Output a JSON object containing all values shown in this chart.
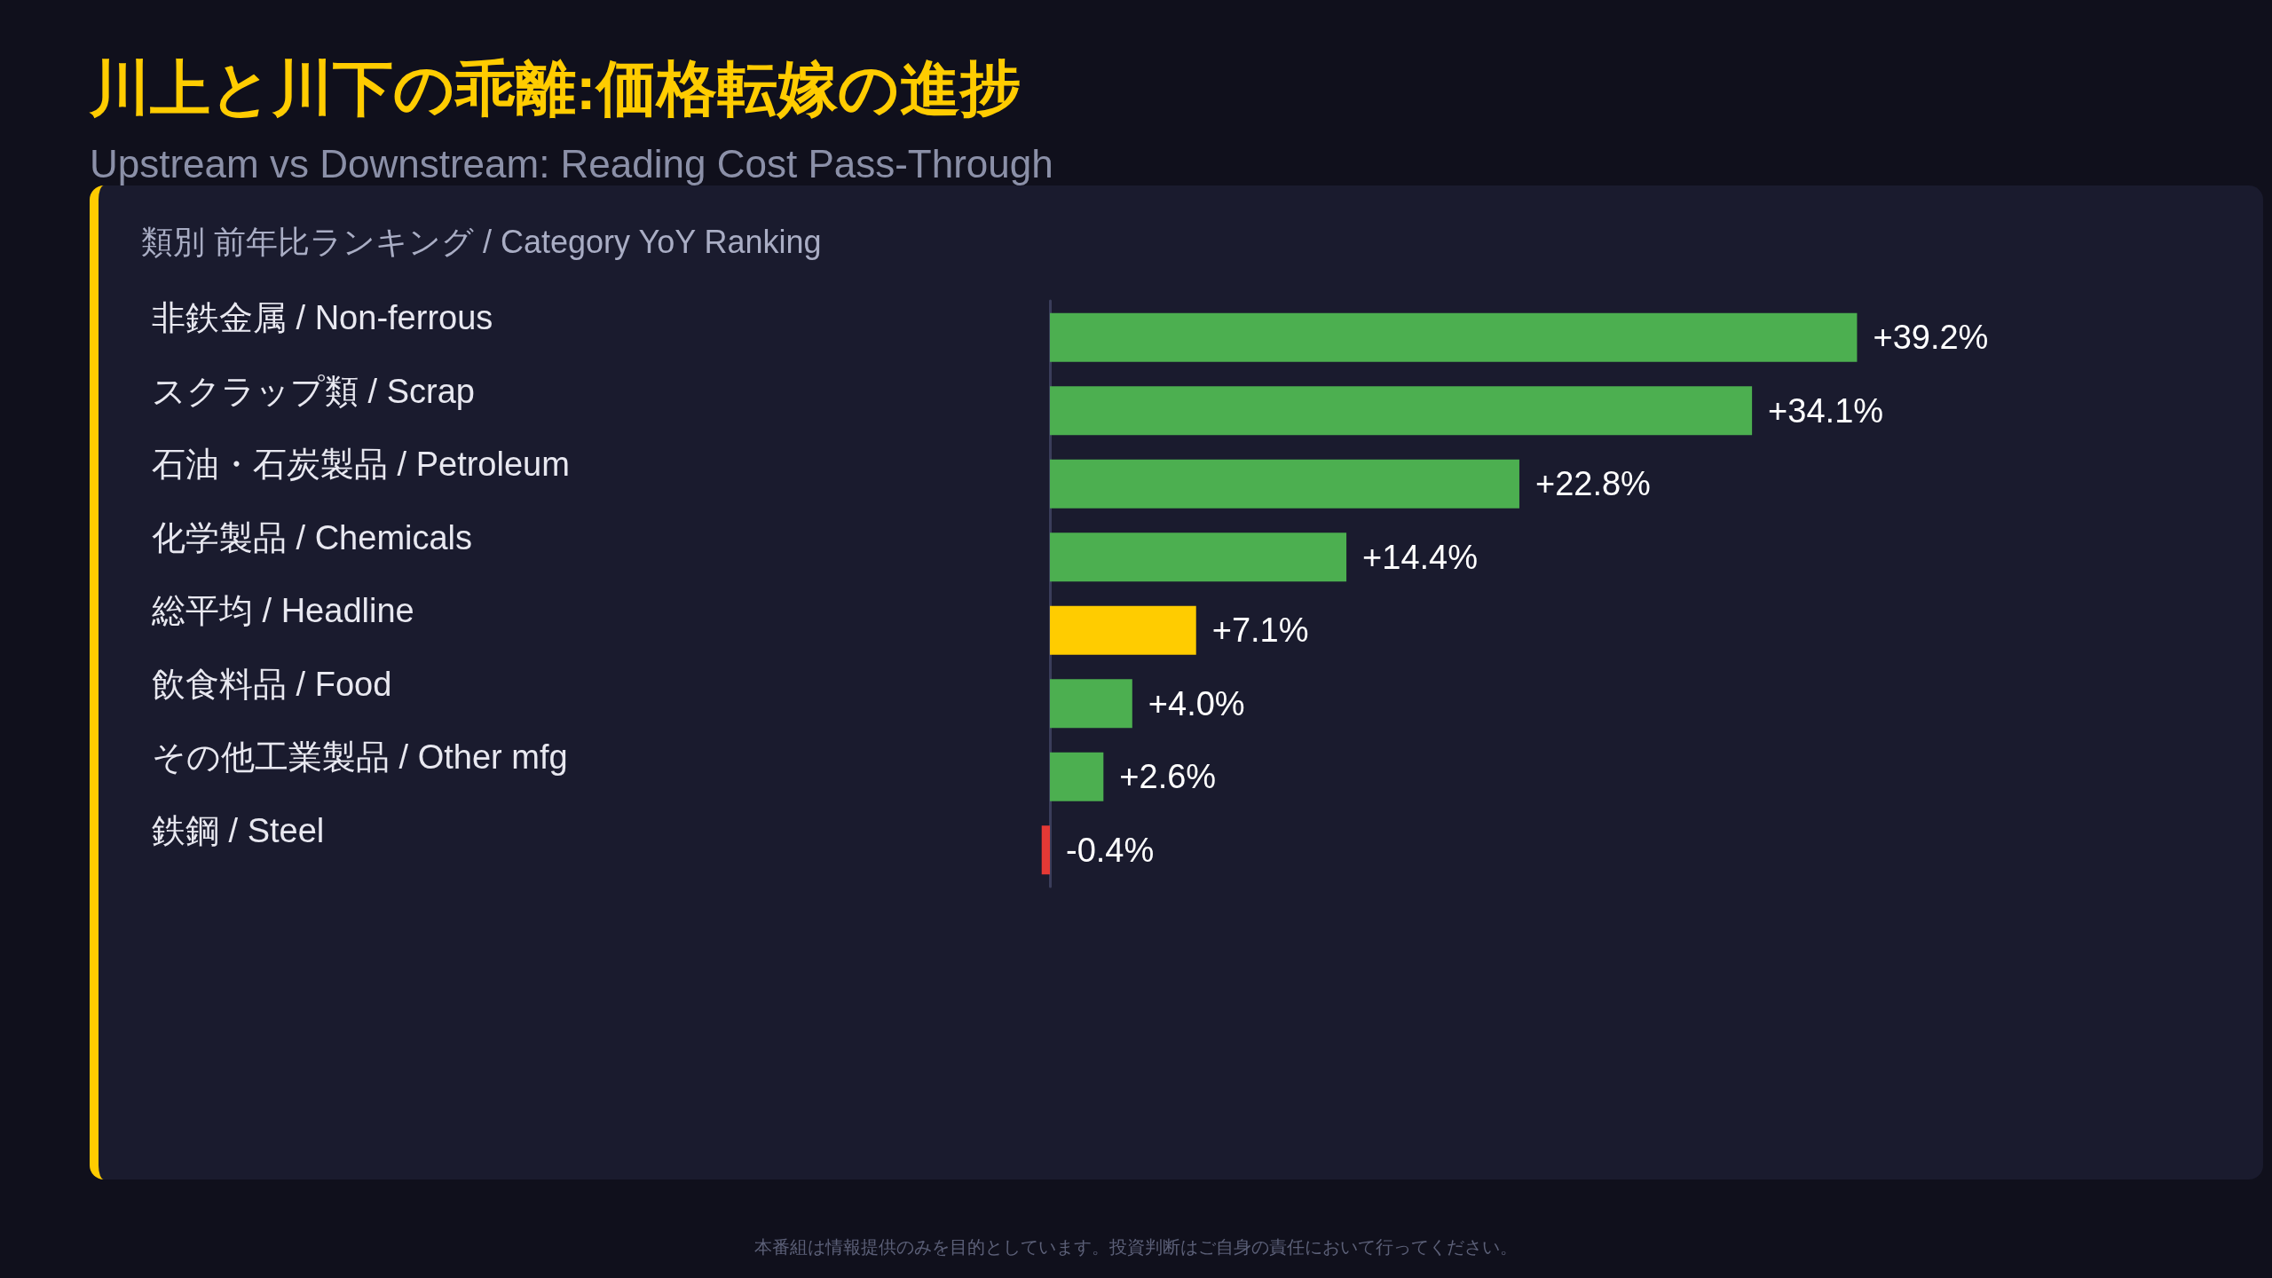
{
  "chart_data": {
    "type": "bar",
    "orientation": "horizontal",
    "title": "川上と川下の乖離:価格転嫁の進捗",
    "subtitle": "Upstream vs Downstream: Reading Cost Pass-Through",
    "annotations": [
      "類別 前年比ランキング / Category YoY Ranking",
      "本番組は情報提供のみを目的としています。投資判断はご自身の責任において行ってください。"
    ],
    "categories": [
      "非鉄金属 / Non-ferrous",
      "スクラップ類 / Scrap",
      "石油・石炭製品 / Petroleum",
      "化学製品 / Chemicals",
      "総平均 / Headline",
      "飲食料品 / Food",
      "その他工業製品 / Other mfg",
      "鉄鋼 / Steel"
    ],
    "values": [
      39.2,
      34.1,
      22.8,
      14.4,
      7.1,
      4.0,
      2.6,
      -0.4
    ],
    "colors": [
      "#4caf50",
      "#4caf50",
      "#4caf50",
      "#4caf50",
      "#ffcc00",
      "#4caf50",
      "#4caf50",
      "#e53935"
    ],
    "value_labels": [
      "+39.2%",
      "+34.1%",
      "+22.8%",
      "+14.4%",
      "+7.1%",
      "+4.0%",
      "+2.6%",
      "-0.4%"
    ],
    "tick_labels": "y"
  }
}
